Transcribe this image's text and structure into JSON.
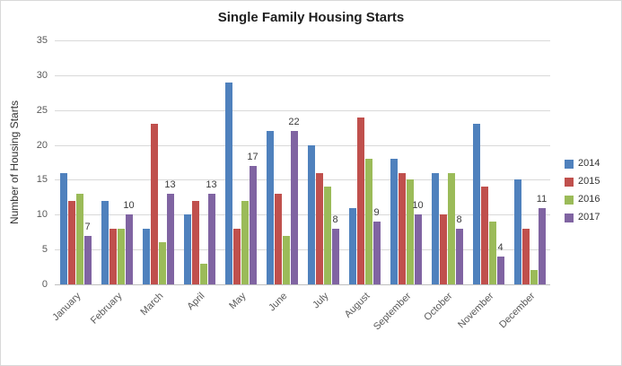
{
  "chart_data": {
    "type": "bar",
    "title": "Single Family Housing Starts",
    "xlabel": "",
    "ylabel": "Number of Housing Starts",
    "ylim": [
      0,
      35
    ],
    "ytick_step": 5,
    "grid": true,
    "legend_position": "right",
    "categories": [
      "January",
      "February",
      "March",
      "April",
      "May",
      "June",
      "July",
      "August",
      "September",
      "October",
      "November",
      "December"
    ],
    "series": [
      {
        "name": "2014",
        "color": "#4F81BD",
        "values": [
          16,
          12,
          8,
          10,
          29,
          22,
          20,
          11,
          18,
          16,
          23,
          15
        ]
      },
      {
        "name": "2015",
        "color": "#C0504D",
        "values": [
          12,
          8,
          23,
          12,
          8,
          13,
          16,
          24,
          16,
          10,
          14,
          8
        ]
      },
      {
        "name": "2016",
        "color": "#9BBB59",
        "values": [
          13,
          8,
          6,
          3,
          12,
          7,
          14,
          18,
          15,
          16,
          9,
          2
        ]
      },
      {
        "name": "2017",
        "color": "#8064A2",
        "values": [
          7,
          10,
          13,
          13,
          17,
          22,
          8,
          9,
          10,
          8,
          4,
          11
        ],
        "data_labels": true
      }
    ]
  }
}
